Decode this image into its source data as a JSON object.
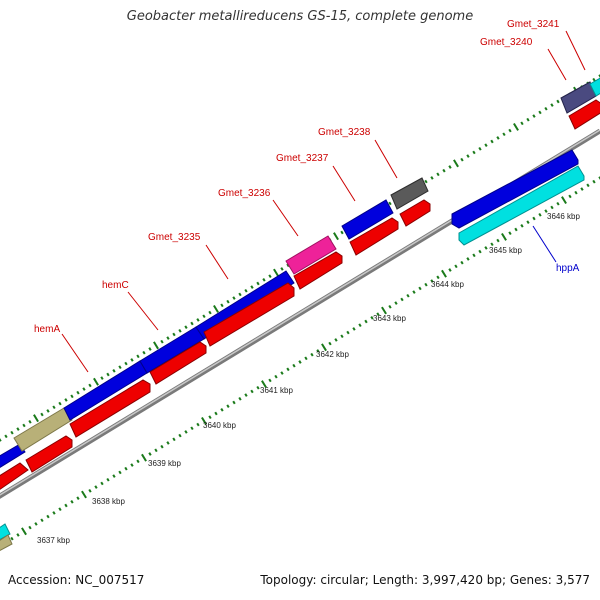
{
  "title": "Geobacter metallireducens GS-15, complete genome",
  "footer": {
    "accession": "Accession: NC_007517",
    "summary": "Topology: circular; Length: 3,997,420 bp; Genes: 3,577"
  },
  "colors": {
    "background": "#ffffff",
    "backbone": "#8a8a8a",
    "tick": "#1a7a1a",
    "label_red": "#cc0000",
    "label_blue": "#0000cc",
    "cds_blue": "#0000dd",
    "cds_red": "#ee0000",
    "cds_cyan": "#00e0e0",
    "cds_olive": "#b8b078",
    "cds_magenta": "#ee2299",
    "cds_gray": "#5a5a5a",
    "cds_slate": "#4a4a80"
  },
  "scale_labels": [
    "3637 kbp",
    "3638 kbp",
    "3639 kbp",
    "3640 kbp",
    "3641 kbp",
    "3642 kbp",
    "3643 kbp",
    "3644 kbp",
    "3645 kbp",
    "3646 kbp"
  ],
  "gene_labels": [
    {
      "name": "hemA",
      "strand": "forward"
    },
    {
      "name": "hemC",
      "strand": "forward"
    },
    {
      "name": "Gmet_3235",
      "strand": "forward"
    },
    {
      "name": "Gmet_3236",
      "strand": "forward"
    },
    {
      "name": "Gmet_3237",
      "strand": "forward"
    },
    {
      "name": "Gmet_3238",
      "strand": "forward"
    },
    {
      "name": "Gmet_3240",
      "strand": "forward"
    },
    {
      "name": "Gmet_3241",
      "strand": "forward"
    },
    {
      "name": "hppA",
      "strand": "reverse"
    }
  ]
}
